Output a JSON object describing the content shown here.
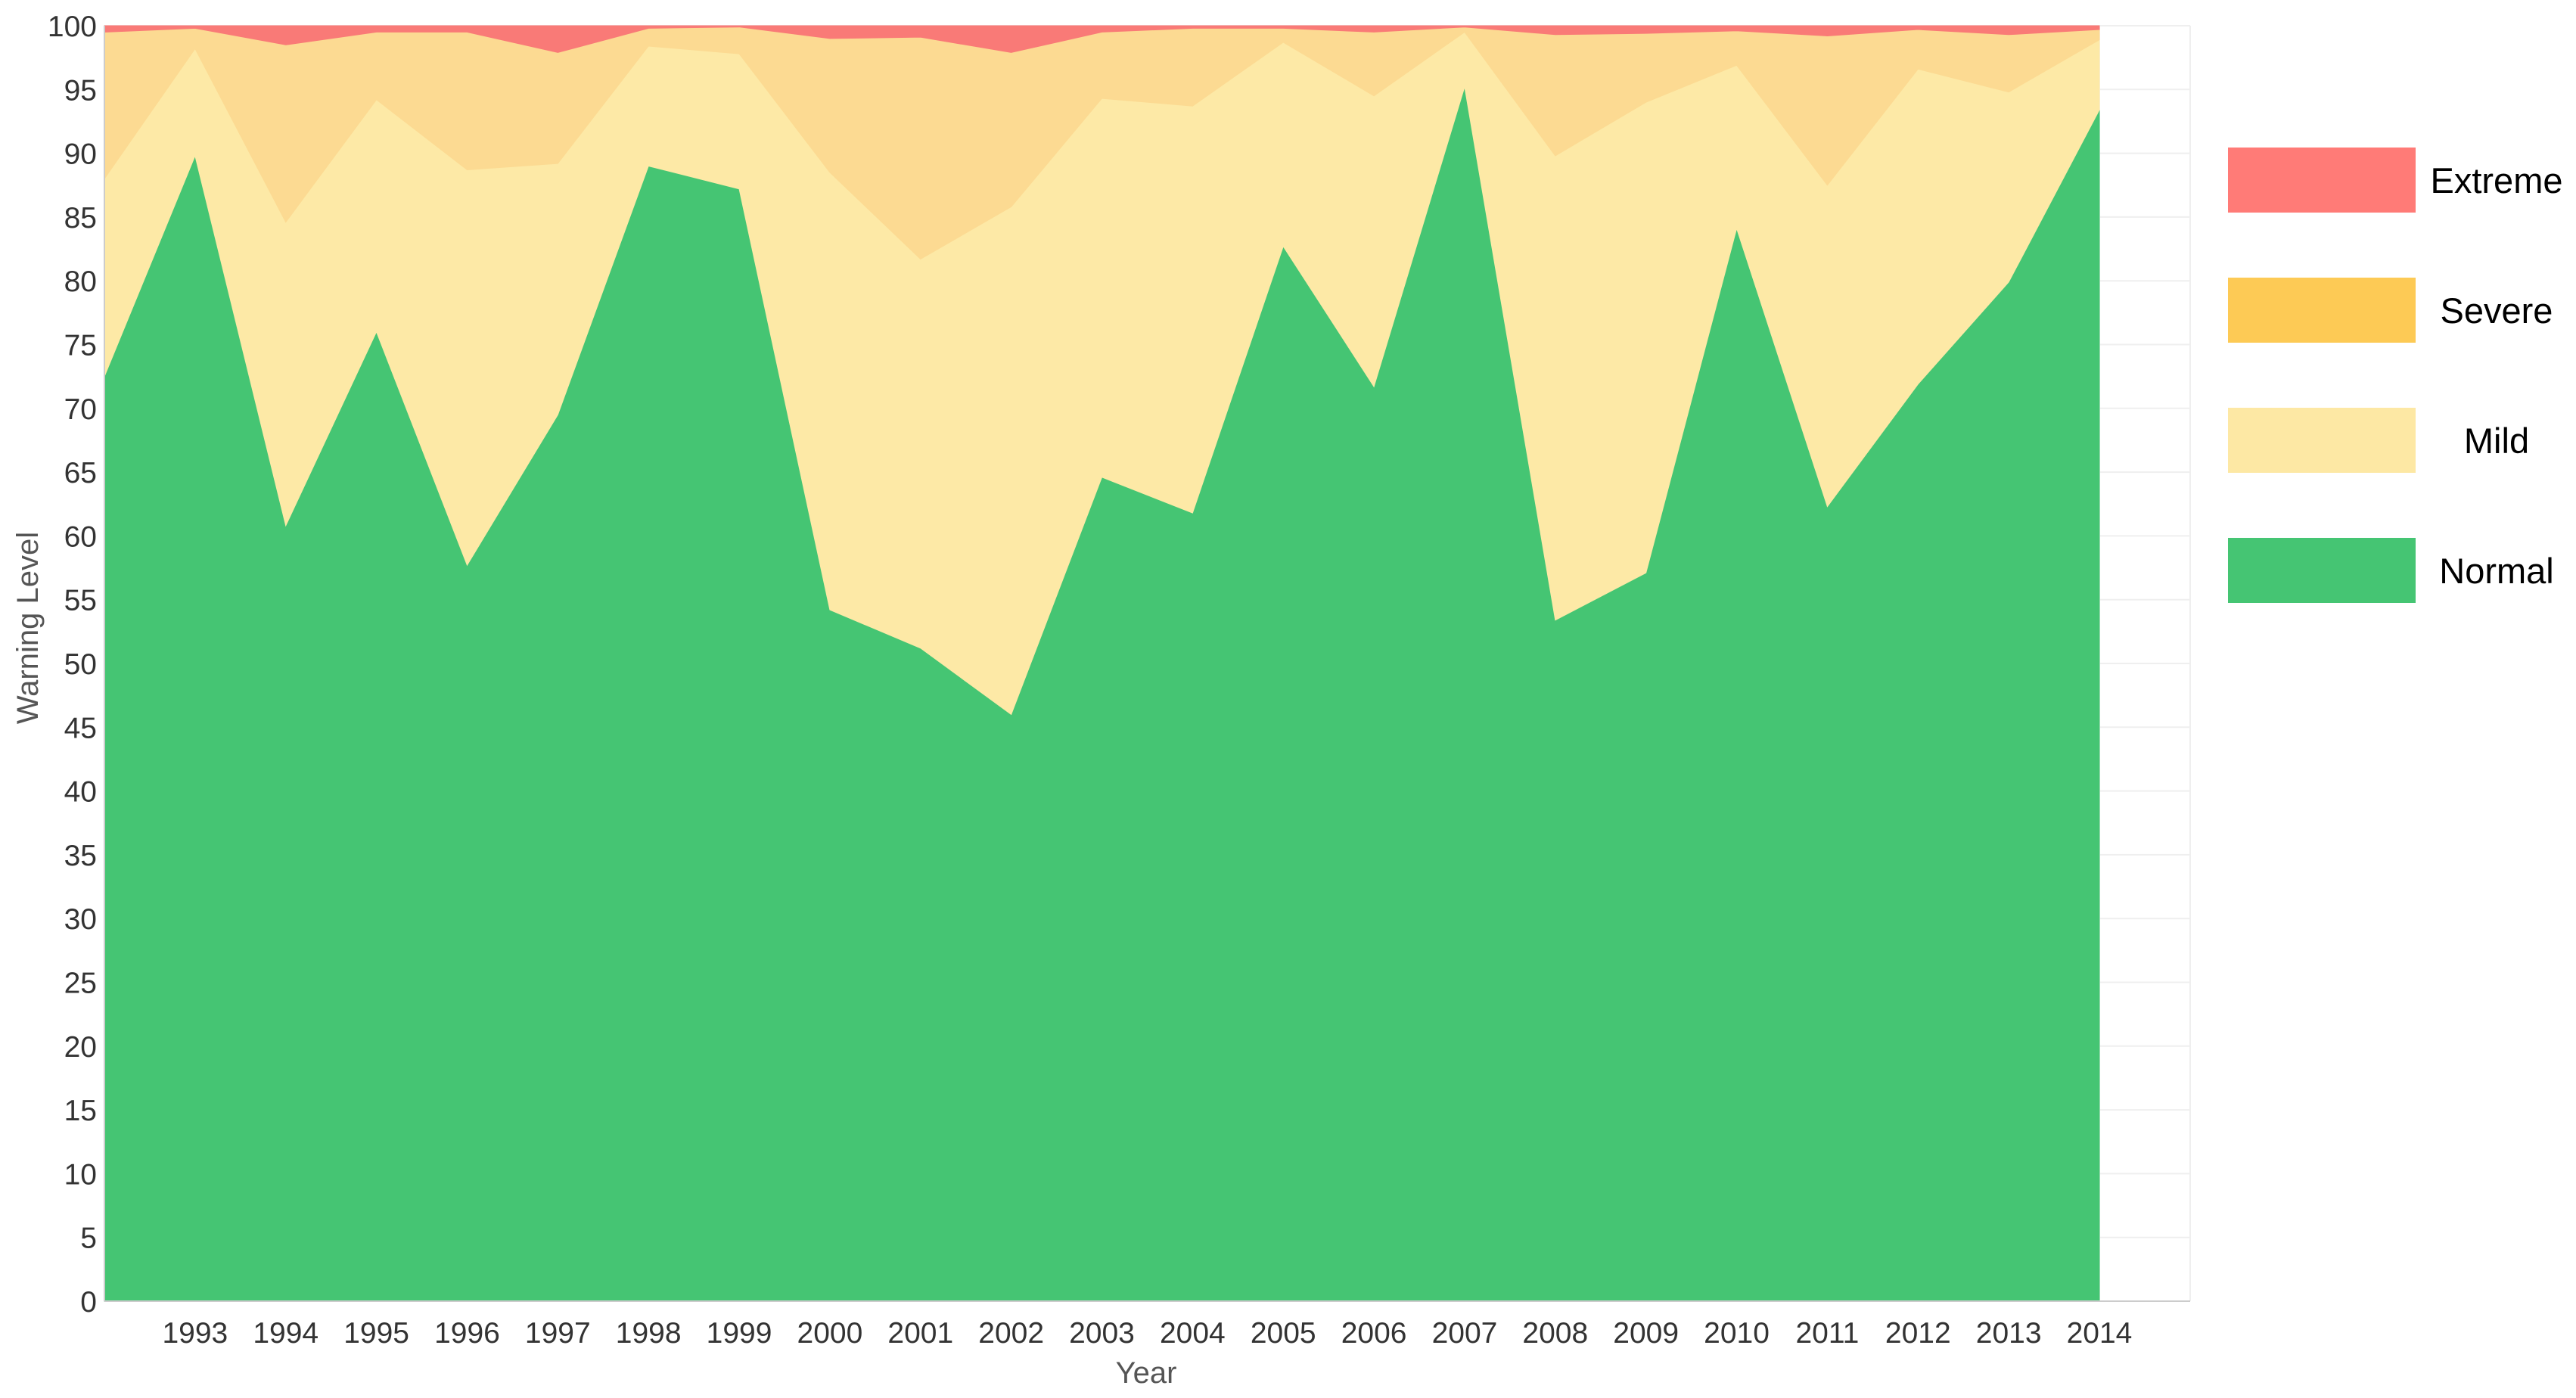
{
  "chart_data": {
    "type": "area",
    "stacked": true,
    "title": "",
    "xlabel": "Year",
    "ylabel": "Warning Level",
    "x": [
      1992,
      1993,
      1994,
      1995,
      1996,
      1997,
      1998,
      1999,
      2000,
      2001,
      2002,
      2003,
      2004,
      2005,
      2006,
      2007,
      2008,
      2009,
      2010,
      2011,
      2012,
      2013,
      2014
    ],
    "x_tick_labels": [
      "1993",
      "1994",
      "1995",
      "1996",
      "1997",
      "1998",
      "1999",
      "2000",
      "2001",
      "2002",
      "2003",
      "2004",
      "2005",
      "2006",
      "2007",
      "2008",
      "2009",
      "2010",
      "2011",
      "2012",
      "2013",
      "2014"
    ],
    "y_tick_labels": [
      "0",
      "5",
      "10",
      "15",
      "20",
      "25",
      "30",
      "35",
      "40",
      "45",
      "50",
      "55",
      "60",
      "65",
      "70",
      "75",
      "80",
      "85",
      "90",
      "95",
      "100"
    ],
    "ylim": [
      0,
      100
    ],
    "grid": true,
    "legend_position": "right",
    "series": [
      {
        "name": "Normal",
        "color": "#45C573",
        "values": [
          72.5,
          89.8,
          60.8,
          76.0,
          57.7,
          69.5,
          89.0,
          87.2,
          54.2,
          51.2,
          46.0,
          64.6,
          61.8,
          82.7,
          71.7,
          95.2,
          53.4,
          57.1,
          84.1,
          62.3,
          71.9,
          79.9,
          93.4
        ]
      },
      {
        "name": "Mild",
        "color": "#FDE9A6",
        "values": [
          15.5,
          8.4,
          23.8,
          18.2,
          31.0,
          19.7,
          9.4,
          10.6,
          34.3,
          30.5,
          39.8,
          29.7,
          31.9,
          16.0,
          22.8,
          4.3,
          36.4,
          36.9,
          12.8,
          25.2,
          24.7,
          14.9,
          5.5
        ]
      },
      {
        "name": "Severe",
        "color": "#FCDA92",
        "values": [
          11.5,
          1.6,
          13.9,
          5.3,
          10.8,
          8.7,
          1.4,
          2.1,
          10.5,
          17.4,
          12.1,
          5.2,
          6.1,
          1.1,
          5.0,
          0.4,
          9.5,
          5.4,
          2.7,
          11.7,
          3.1,
          4.5,
          0.8
        ]
      },
      {
        "name": "Extreme",
        "color": "#F97A77",
        "values": [
          0.5,
          0.2,
          1.5,
          0.5,
          0.5,
          2.1,
          0.2,
          0.3,
          1.0,
          0.9,
          2.1,
          0.5,
          0.2,
          0.2,
          0.5,
          0.1,
          0.7,
          0.6,
          0.4,
          0.8,
          0.3,
          0.7,
          0.9
        ]
      }
    ]
  }
}
